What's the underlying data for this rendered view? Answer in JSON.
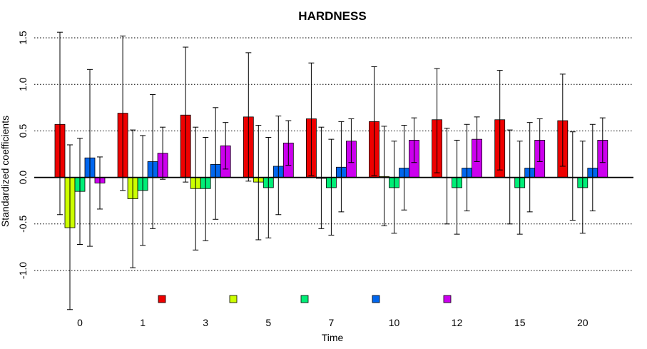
{
  "chart_data": {
    "type": "bar",
    "title": "HARDNESS",
    "xlabel": "Time",
    "ylabel": "Standardized coefficients",
    "categories": [
      "0",
      "1",
      "3",
      "5",
      "7",
      "10",
      "12",
      "15",
      "20"
    ],
    "ylim": [
      -1.4,
      1.6
    ],
    "yticks": [
      -1.0,
      -0.5,
      0.0,
      0.5,
      1.0,
      1.5
    ],
    "ytick_labels": [
      "-1.0",
      "-0.5",
      "0.0",
      "0.5",
      "1.0",
      "1.5"
    ],
    "grid": "dotted horizontal at y ticks",
    "legend_position": "bottom",
    "series": [
      {
        "color": "#ee0000",
        "values": [
          0.57,
          0.69,
          0.67,
          0.65,
          0.63,
          0.6,
          0.62,
          0.62,
          0.61
        ],
        "lower": [
          -0.4,
          -0.14,
          -0.05,
          -0.04,
          0.02,
          0.02,
          0.05,
          0.08,
          0.12
        ],
        "upper": [
          1.56,
          1.52,
          1.4,
          1.34,
          1.23,
          1.19,
          1.17,
          1.15,
          1.11
        ]
      },
      {
        "color": "#ccff00",
        "values": [
          -0.54,
          -0.23,
          -0.12,
          -0.05,
          -0.01,
          0.01,
          0.0,
          0.0,
          0.0
        ],
        "lower": [
          -1.42,
          -0.97,
          -0.78,
          -0.67,
          -0.55,
          -0.52,
          -0.5,
          -0.5,
          -0.46
        ],
        "upper": [
          0.35,
          0.51,
          0.54,
          0.56,
          0.54,
          0.55,
          0.53,
          0.51,
          0.49
        ]
      },
      {
        "color": "#00ee77",
        "values": [
          -0.15,
          -0.14,
          -0.12,
          -0.11,
          -0.11,
          -0.11,
          -0.11,
          -0.11,
          -0.11
        ],
        "lower": [
          -0.72,
          -0.73,
          -0.68,
          -0.65,
          -0.62,
          -0.6,
          -0.61,
          -0.61,
          -0.6
        ],
        "upper": [
          0.42,
          0.45,
          0.43,
          0.43,
          0.41,
          0.39,
          0.4,
          0.39,
          0.39
        ]
      },
      {
        "color": "#0066ee",
        "values": [
          0.21,
          0.17,
          0.14,
          0.12,
          0.11,
          0.1,
          0.1,
          0.1,
          0.1
        ],
        "lower": [
          -0.74,
          -0.55,
          -0.45,
          -0.4,
          -0.37,
          -0.35,
          -0.36,
          -0.37,
          -0.36
        ],
        "upper": [
          1.16,
          0.89,
          0.75,
          0.66,
          0.6,
          0.56,
          0.57,
          0.59,
          0.57
        ]
      },
      {
        "color": "#cc00ee",
        "values": [
          -0.06,
          0.26,
          0.34,
          0.37,
          0.39,
          0.4,
          0.41,
          0.4,
          0.4
        ],
        "lower": [
          -0.34,
          -0.02,
          0.09,
          0.13,
          0.16,
          0.16,
          0.17,
          0.17,
          0.16
        ],
        "upper": [
          0.22,
          0.54,
          0.59,
          0.61,
          0.63,
          0.64,
          0.65,
          0.63,
          0.64
        ]
      }
    ]
  }
}
